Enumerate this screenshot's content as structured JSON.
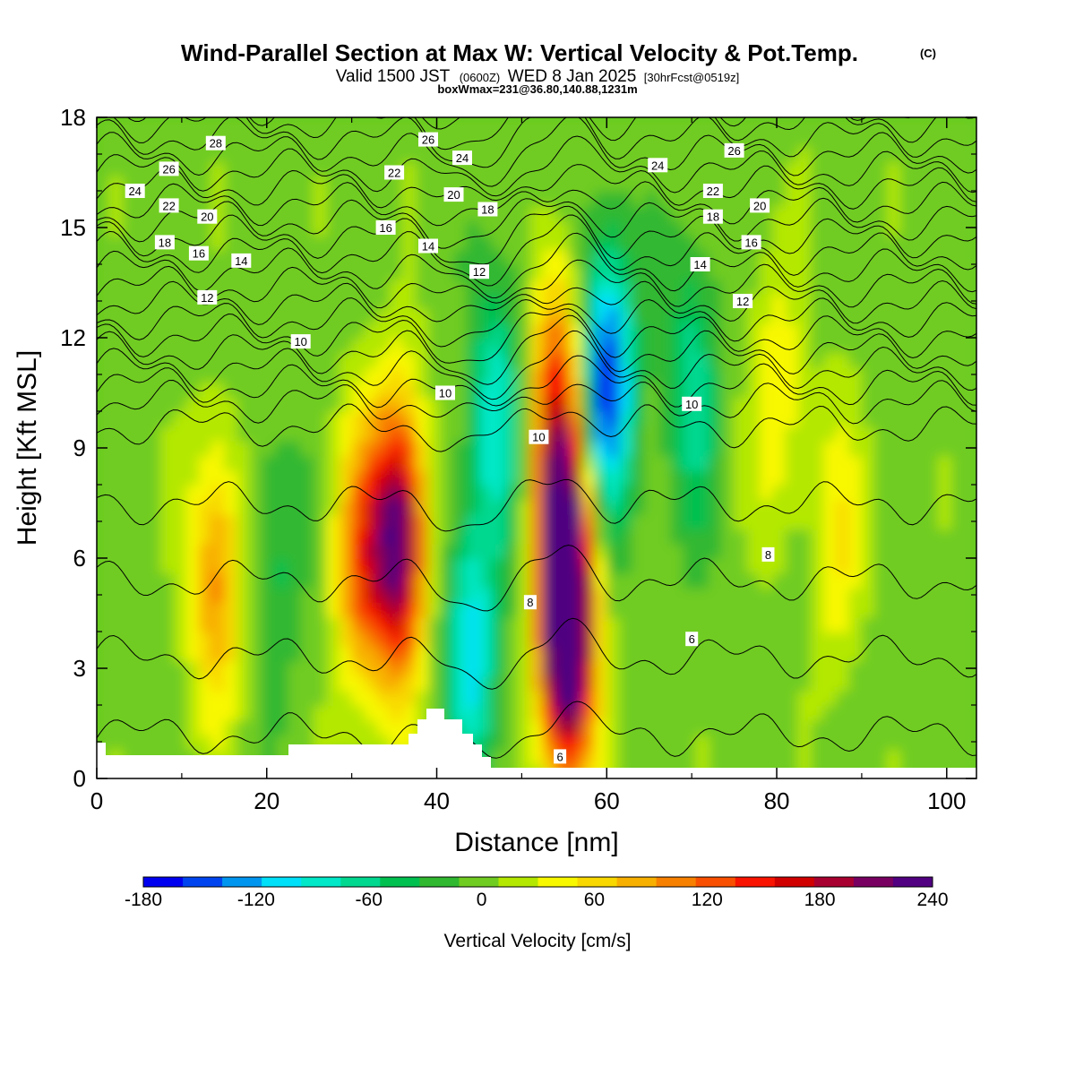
{
  "title": {
    "main": "Wind-Parallel Section at Max W: Vertical Velocity & Pot.Temp.",
    "copyright": "(C)",
    "valid_prefix": "Valid 1500 JST",
    "valid_utc": "(0600Z)",
    "valid_date": "WED 8 Jan 2025",
    "forecast": "[30hrFcst@0519z]",
    "boxw": "boxWmax=231@36.80,140.88,1231m"
  },
  "colorbar": {
    "title": "Vertical Velocity [cm/s]",
    "labels": [
      "-180",
      "-120",
      "-60",
      "0",
      "60",
      "120",
      "180",
      "240"
    ],
    "colors": [
      "#0000f0",
      "#0044f0",
      "#0096f0",
      "#00e0f8",
      "#00e8c8",
      "#00d890",
      "#00c050",
      "#30b830",
      "#70cc20",
      "#b4e800",
      "#f8f800",
      "#f8d800",
      "#f8b000",
      "#f88000",
      "#f85000",
      "#f81400",
      "#d00000",
      "#a80030",
      "#780060",
      "#500080"
    ]
  },
  "chart_data": {
    "type": "heatmap",
    "xlabel": "Distance [nm]",
    "ylabel": "Height [Kft MSL]",
    "xlim": [
      0,
      103.5
    ],
    "ylim": [
      0,
      18
    ],
    "xticks": [
      "0",
      "20",
      "40",
      "60",
      "80",
      "100"
    ],
    "yticks": [
      "0",
      "3",
      "6",
      "9",
      "12",
      "15",
      "18"
    ],
    "fill_variable": "Vertical Velocity [cm/s]",
    "fill_range": [
      -180,
      240
    ],
    "contour_variable": "Pot.Temp.",
    "updrafts": [
      {
        "x": 14,
        "z": 5.5,
        "w": 100
      },
      {
        "x": 31,
        "z": 6.0,
        "w": 110
      },
      {
        "x": 35.5,
        "z": 6.5,
        "w": 230
      },
      {
        "x": 55,
        "z": 6.0,
        "w": 200
      },
      {
        "x": 55.5,
        "z": 3.5,
        "w": 215
      },
      {
        "x": 54,
        "z": 10.5,
        "w": 120
      },
      {
        "x": 80,
        "z": 10.5,
        "w": 50
      },
      {
        "x": 87,
        "z": 6.5,
        "w": 50
      }
    ],
    "downdrafts": [
      {
        "x": 44,
        "z": 3.5,
        "w": -105
      },
      {
        "x": 47,
        "z": 10.0,
        "w": -90
      },
      {
        "x": 60,
        "z": 10.8,
        "w": -165
      },
      {
        "x": 70,
        "z": 10.5,
        "w": -70
      },
      {
        "x": 21,
        "z": 6.0,
        "w": -40
      }
    ],
    "contour_labels": [
      {
        "text": "28",
        "x": 14,
        "z": 17.3
      },
      {
        "text": "26",
        "x": 8.5,
        "z": 16.6
      },
      {
        "text": "24",
        "x": 4.5,
        "z": 16.0
      },
      {
        "text": "22",
        "x": 8.5,
        "z": 15.6
      },
      {
        "text": "20",
        "x": 13,
        "z": 15.3
      },
      {
        "text": "18",
        "x": 8,
        "z": 14.6
      },
      {
        "text": "16",
        "x": 12,
        "z": 14.3
      },
      {
        "text": "14",
        "x": 17,
        "z": 14.1
      },
      {
        "text": "12",
        "x": 13,
        "z": 13.1
      },
      {
        "text": "10",
        "x": 24,
        "z": 11.9
      },
      {
        "text": "26",
        "x": 39,
        "z": 17.4
      },
      {
        "text": "24",
        "x": 43,
        "z": 16.9
      },
      {
        "text": "22",
        "x": 35,
        "z": 16.5
      },
      {
        "text": "20",
        "x": 42,
        "z": 15.9
      },
      {
        "text": "18",
        "x": 46,
        "z": 15.5
      },
      {
        "text": "16",
        "x": 34,
        "z": 15.0
      },
      {
        "text": "14",
        "x": 39,
        "z": 14.5
      },
      {
        "text": "12",
        "x": 45,
        "z": 13.8
      },
      {
        "text": "10",
        "x": 41,
        "z": 10.5
      },
      {
        "text": "10",
        "x": 52,
        "z": 9.3
      },
      {
        "text": "8",
        "x": 51,
        "z": 4.8
      },
      {
        "text": "6",
        "x": 54.5,
        "z": 0.6
      },
      {
        "text": "24",
        "x": 66,
        "z": 16.7
      },
      {
        "text": "26",
        "x": 75,
        "z": 17.1
      },
      {
        "text": "22",
        "x": 72.5,
        "z": 16.0
      },
      {
        "text": "20",
        "x": 78,
        "z": 15.6
      },
      {
        "text": "18",
        "x": 72.5,
        "z": 15.3
      },
      {
        "text": "16",
        "x": 77,
        "z": 14.6
      },
      {
        "text": "14",
        "x": 71,
        "z": 14.0
      },
      {
        "text": "12",
        "x": 76,
        "z": 13.0
      },
      {
        "text": "10",
        "x": 70,
        "z": 10.2
      },
      {
        "text": "8",
        "x": 79,
        "z": 6.1
      },
      {
        "text": "6",
        "x": 70,
        "z": 3.8
      }
    ]
  }
}
